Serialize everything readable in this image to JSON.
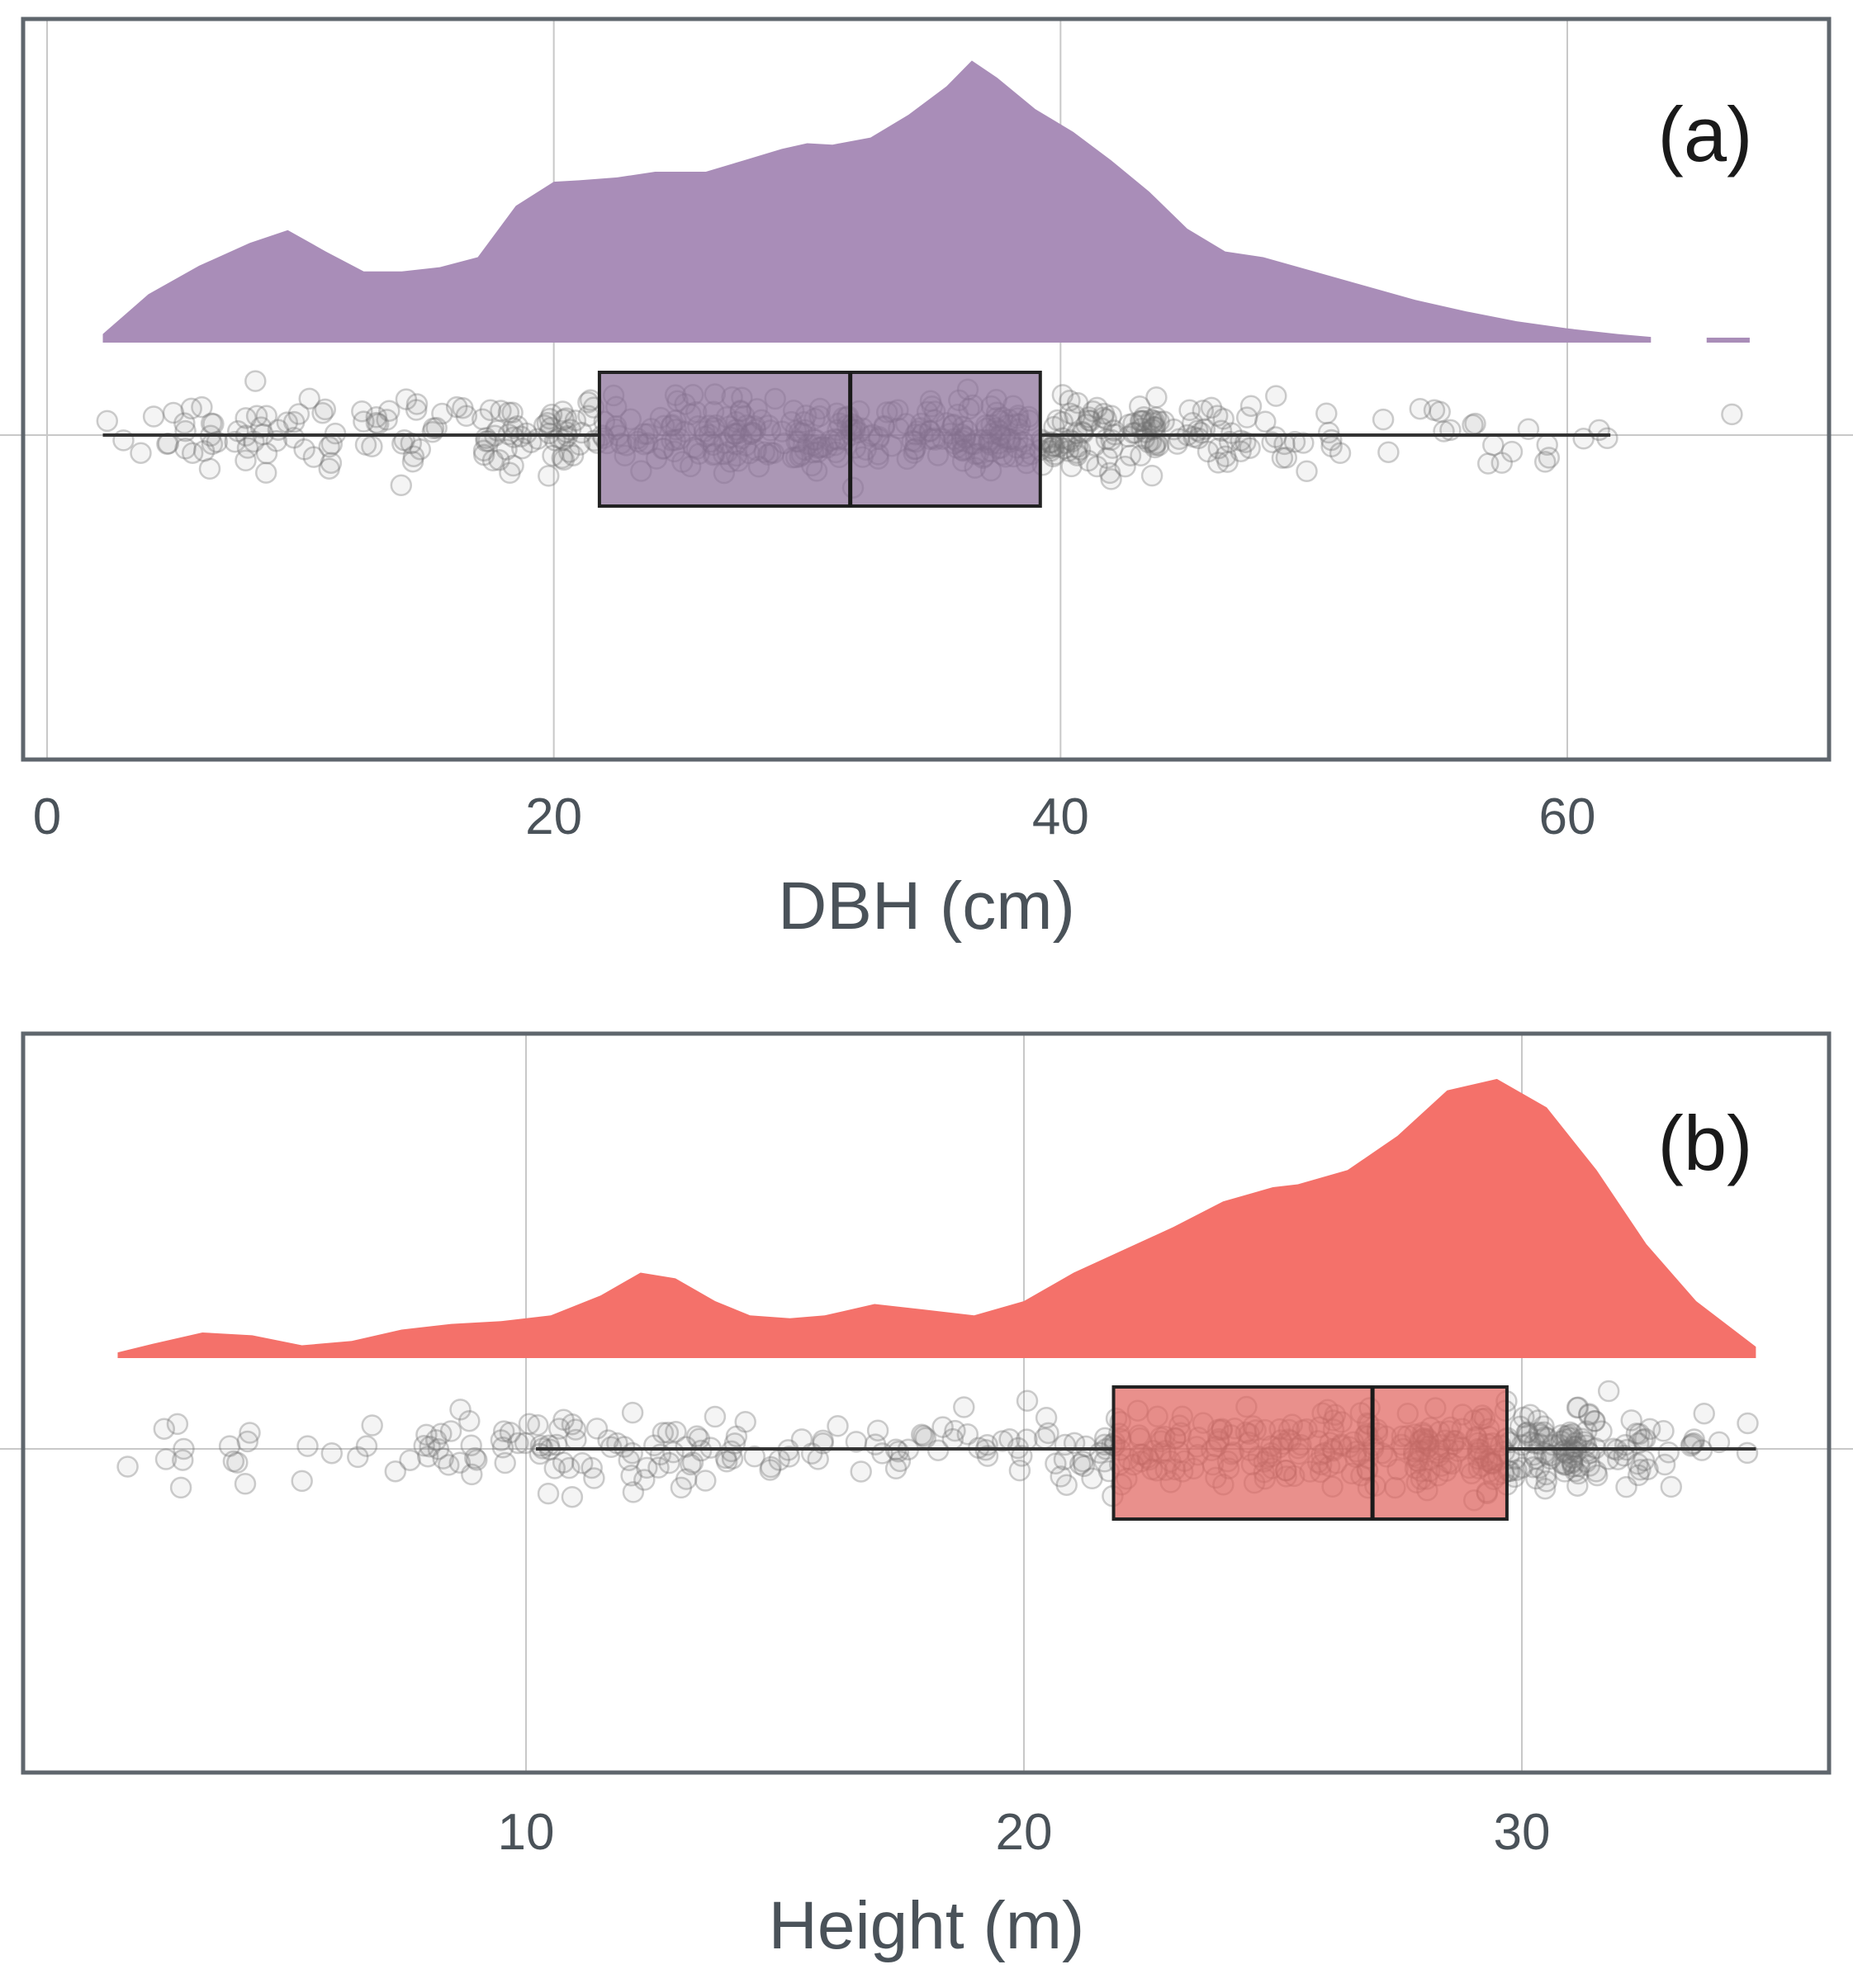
{
  "colors": {
    "dbh_fill": "#a98db8",
    "height_fill": "#f4716a",
    "dbh_box": "#8a6f99",
    "height_box": "#e06560",
    "point": "#6f6f6f",
    "grid": "#c8c8c8",
    "frame": "#5f666d"
  },
  "chart_data": [
    {
      "panel": "(a)",
      "type": "raincloud",
      "xlabel": "DBH (cm)",
      "xlim": [
        -1,
        70.3
      ],
      "xticks": [
        0,
        20,
        40,
        60
      ],
      "xtick_labels": [
        "0",
        "20",
        "40",
        "60"
      ],
      "density": {
        "x": [
          2.2,
          4,
          6,
          8,
          9.5,
          11,
          12.5,
          14,
          15.5,
          17,
          18.5,
          20,
          21,
          22.5,
          24,
          26,
          27.5,
          29,
          30,
          31,
          32.5,
          34,
          35.5,
          36.5,
          37.5,
          39,
          40.5,
          42,
          43.5,
          45,
          46.5,
          48,
          50,
          52,
          54,
          56,
          58,
          60,
          62,
          63.3
        ],
        "y": [
          0.03,
          0.17,
          0.27,
          0.35,
          0.395,
          0.32,
          0.25,
          0.25,
          0.265,
          0.3,
          0.48,
          0.565,
          0.57,
          0.58,
          0.6,
          0.6,
          0.64,
          0.68,
          0.7,
          0.695,
          0.72,
          0.8,
          0.9,
          0.99,
          0.93,
          0.82,
          0.74,
          0.64,
          0.53,
          0.4,
          0.32,
          0.3,
          0.25,
          0.2,
          0.15,
          0.11,
          0.075,
          0.05,
          0.03,
          0.02
        ]
      },
      "density_tail": [
        65.5,
        67.2
      ],
      "boxplot": {
        "whisker_low": 2.2,
        "q1": 21.8,
        "median": 31.7,
        "q3": 39.2,
        "whisker_high": 61.7
      },
      "outliers": [
        66.5
      ],
      "n_points": 560
    },
    {
      "panel": "(b)",
      "type": "raincloud",
      "xlabel": "Height (m)",
      "xlim": [
        0.3,
        36.4
      ],
      "xticks": [
        10,
        20,
        30
      ],
      "xtick_labels": [
        "10",
        "20",
        "30"
      ],
      "density": {
        "x": [
          1.8,
          2.5,
          3.5,
          4.5,
          5.5,
          6.5,
          7.5,
          8.5,
          9.5,
          10.5,
          11.5,
          12.3,
          13,
          13.8,
          14.5,
          15.3,
          16,
          17,
          18,
          19,
          20,
          21,
          22,
          23,
          24,
          25,
          25.5,
          26.5,
          27.5,
          28.5,
          29.5,
          30.5,
          31.5,
          32.5,
          33.5,
          34.7
        ],
        "y": [
          0.02,
          0.05,
          0.09,
          0.08,
          0.045,
          0.06,
          0.1,
          0.12,
          0.13,
          0.15,
          0.22,
          0.3,
          0.28,
          0.2,
          0.15,
          0.14,
          0.15,
          0.19,
          0.17,
          0.15,
          0.2,
          0.3,
          0.38,
          0.46,
          0.55,
          0.6,
          0.61,
          0.66,
          0.78,
          0.94,
          0.98,
          0.88,
          0.66,
          0.4,
          0.2,
          0.04
        ]
      },
      "boxplot": {
        "whisker_low": 10.2,
        "q1": 21.8,
        "median": 27.0,
        "q3": 29.7,
        "whisker_high": 34.7
      },
      "outliers": [
        2.0,
        3.0,
        4.2,
        5.5,
        6.8,
        8.0,
        8.9,
        9.5
      ],
      "n_points": 520
    }
  ]
}
